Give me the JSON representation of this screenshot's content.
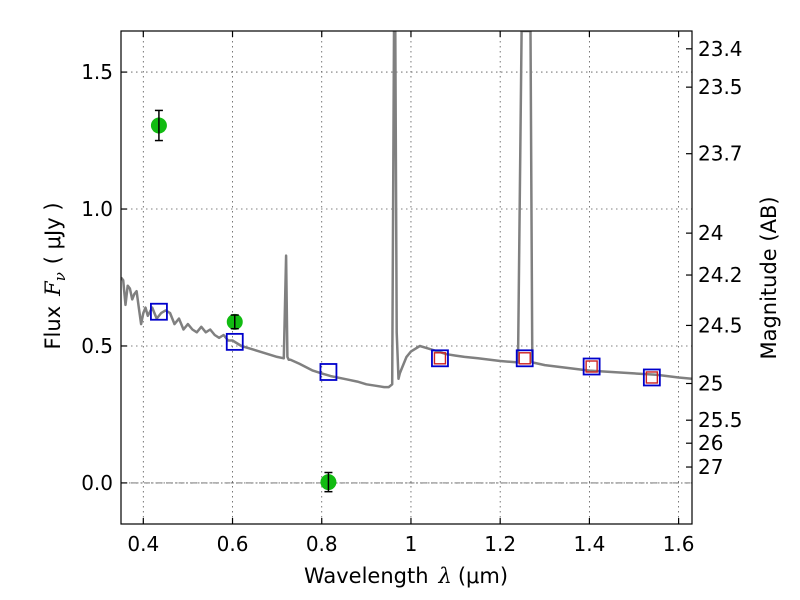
{
  "chart_data": {
    "type": "scatter",
    "xlabel": "Wavelength",
    "xlabel_symbol": "λ",
    "xlabel_unit": "(μm)",
    "ylabel": "Flux",
    "ylabel_symbol": "F",
    "ylabel_subscript": "ν",
    "ylabel_unit": "( μJy )",
    "y2label": "Magnitude (AB)",
    "xlim": [
      0.35,
      1.63
    ],
    "ylim": [
      -0.15,
      1.65
    ],
    "xticks": [
      0.4,
      0.6,
      0.8,
      1.0,
      1.2,
      1.4,
      1.6
    ],
    "xtick_labels": [
      "0.4",
      "0.6",
      "0.8",
      "1",
      "1.2",
      "1.4",
      "1.6"
    ],
    "yticks": [
      0.0,
      0.5,
      1.0,
      1.5
    ],
    "ytick_labels": [
      "0.0",
      "0.5",
      "1.0",
      "1.5"
    ],
    "y2ticks": [
      {
        "label": "23.4",
        "flux": 1.585
      },
      {
        "label": "23.5",
        "flux": 1.445
      },
      {
        "label": "23.7",
        "flux": 1.202
      },
      {
        "label": "24",
        "flux": 0.912
      },
      {
        "label": "24.2",
        "flux": 0.759
      },
      {
        "label": "24.5",
        "flux": 0.575
      },
      {
        "label": "25",
        "flux": 0.363
      },
      {
        "label": "25.5",
        "flux": 0.229
      },
      {
        "label": "26",
        "flux": 0.145
      },
      {
        "label": "27",
        "flux": 0.058
      }
    ],
    "grid": true,
    "observed_points": {
      "color": "#11bb11",
      "points": [
        {
          "x": 0.435,
          "y": 1.305,
          "err": 0.055
        },
        {
          "x": 0.605,
          "y": 0.588,
          "err": 0.025
        },
        {
          "x": 0.815,
          "y": 0.003,
          "err": 0.035
        }
      ]
    },
    "model_photometry": {
      "color": "#0000cc",
      "points": [
        {
          "x": 0.435,
          "y": 0.625
        },
        {
          "x": 0.605,
          "y": 0.515
        },
        {
          "x": 0.815,
          "y": 0.405
        },
        {
          "x": 1.065,
          "y": 0.455
        },
        {
          "x": 1.255,
          "y": 0.455
        },
        {
          "x": 1.405,
          "y": 0.425
        },
        {
          "x": 1.54,
          "y": 0.385
        }
      ]
    },
    "model_photometry_inner": {
      "color": "#cc2222",
      "points": [
        {
          "x": 1.065,
          "y": 0.455
        },
        {
          "x": 1.255,
          "y": 0.455
        },
        {
          "x": 1.405,
          "y": 0.425
        },
        {
          "x": 1.54,
          "y": 0.385
        }
      ]
    },
    "spectrum": {
      "color": "#808080",
      "x": [
        0.35,
        0.355,
        0.36,
        0.365,
        0.37,
        0.375,
        0.38,
        0.385,
        0.39,
        0.395,
        0.4,
        0.405,
        0.41,
        0.42,
        0.43,
        0.44,
        0.45,
        0.46,
        0.47,
        0.48,
        0.49,
        0.5,
        0.51,
        0.52,
        0.53,
        0.54,
        0.55,
        0.56,
        0.57,
        0.58,
        0.59,
        0.6,
        0.62,
        0.64,
        0.66,
        0.68,
        0.7,
        0.715,
        0.72,
        0.723,
        0.726,
        0.73,
        0.75,
        0.78,
        0.8,
        0.82,
        0.85,
        0.88,
        0.9,
        0.92,
        0.94,
        0.95,
        0.958,
        0.962,
        0.965,
        0.968,
        0.972,
        0.975,
        0.98,
        0.99,
        1.0,
        1.02,
        1.04,
        1.06,
        1.08,
        1.1,
        1.12,
        1.15,
        1.2,
        1.24,
        1.248,
        1.254,
        1.268,
        1.272,
        1.3,
        1.35,
        1.4,
        1.45,
        1.5,
        1.55,
        1.6,
        1.63
      ],
      "y": [
        0.75,
        0.74,
        0.65,
        0.72,
        0.71,
        0.67,
        0.69,
        0.7,
        0.64,
        0.58,
        0.62,
        0.64,
        0.61,
        0.64,
        0.6,
        0.62,
        0.63,
        0.62,
        0.58,
        0.6,
        0.56,
        0.58,
        0.56,
        0.55,
        0.57,
        0.55,
        0.56,
        0.54,
        0.53,
        0.54,
        0.52,
        0.52,
        0.5,
        0.49,
        0.48,
        0.47,
        0.46,
        0.455,
        0.83,
        0.46,
        0.45,
        0.45,
        0.435,
        0.41,
        0.4,
        0.39,
        0.38,
        0.37,
        0.36,
        0.355,
        0.35,
        0.35,
        0.36,
        1.65,
        1.65,
        0.55,
        0.38,
        0.4,
        0.42,
        0.46,
        0.48,
        0.5,
        0.49,
        0.48,
        0.47,
        0.465,
        0.46,
        0.455,
        0.445,
        0.44,
        1.65,
        1.65,
        1.65,
        0.44,
        0.43,
        0.42,
        0.41,
        0.405,
        0.4,
        0.395,
        0.385,
        0.38
      ]
    }
  }
}
